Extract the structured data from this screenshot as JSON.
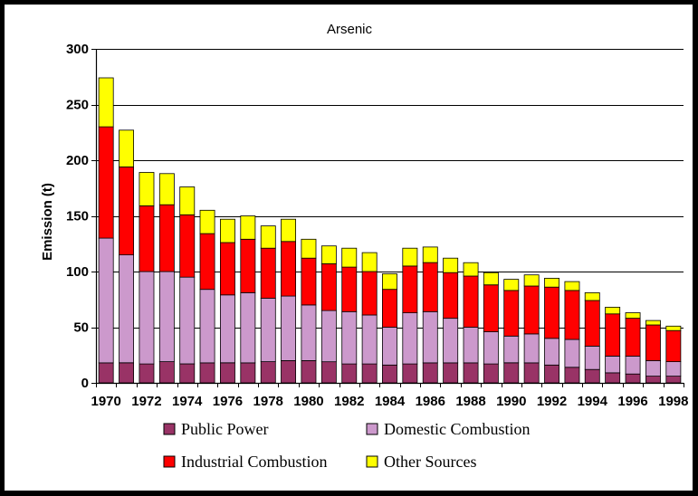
{
  "chart_data": {
    "type": "bar",
    "stacked": true,
    "title": "Arsenic",
    "xlabel": "",
    "ylabel": "Emission (t)",
    "ylim": [
      0,
      300
    ],
    "yticks": [
      0,
      50,
      100,
      150,
      200,
      250,
      300
    ],
    "grid": "horizontal",
    "legend_position": "bottom",
    "categories": [
      1970,
      1971,
      1972,
      1973,
      1974,
      1975,
      1976,
      1977,
      1978,
      1979,
      1980,
      1981,
      1982,
      1983,
      1984,
      1985,
      1986,
      1987,
      1988,
      1989,
      1990,
      1991,
      1992,
      1993,
      1994,
      1995,
      1996,
      1997,
      1998
    ],
    "xtick_labels": [
      "1970",
      "1972",
      "1974",
      "1976",
      "1978",
      "1980",
      "1982",
      "1984",
      "1986",
      "1988",
      "1990",
      "1992",
      "1994",
      "1996",
      "1998"
    ],
    "series": [
      {
        "name": "Public Power",
        "color": "#993366",
        "values": [
          18,
          18,
          17,
          19,
          17,
          18,
          18,
          18,
          19,
          20,
          20,
          19,
          17,
          17,
          16,
          17,
          18,
          18,
          18,
          17,
          18,
          18,
          16,
          14,
          12,
          9,
          8,
          6,
          6
        ]
      },
      {
        "name": "Domestic Combustion",
        "color": "#cc99cc",
        "values": [
          112,
          97,
          83,
          81,
          78,
          66,
          61,
          63,
          57,
          58,
          50,
          46,
          47,
          44,
          34,
          46,
          46,
          40,
          32,
          29,
          24,
          26,
          24,
          25,
          21,
          15,
          16,
          14,
          13
        ]
      },
      {
        "name": "Industrial Combustion",
        "color": "#ff0000",
        "values": [
          100,
          79,
          59,
          60,
          56,
          50,
          47,
          48,
          45,
          49,
          42,
          42,
          40,
          39,
          34,
          42,
          44,
          41,
          46,
          42,
          41,
          43,
          46,
          44,
          41,
          38,
          34,
          32,
          28
        ]
      },
      {
        "name": "Other Sources",
        "color": "#ffff00",
        "values": [
          44,
          33,
          30,
          28,
          25,
          21,
          21,
          21,
          20,
          20,
          17,
          16,
          17,
          17,
          14,
          16,
          14,
          13,
          12,
          11,
          10,
          10,
          8,
          8,
          7,
          6,
          5,
          4,
          4
        ]
      }
    ]
  }
}
